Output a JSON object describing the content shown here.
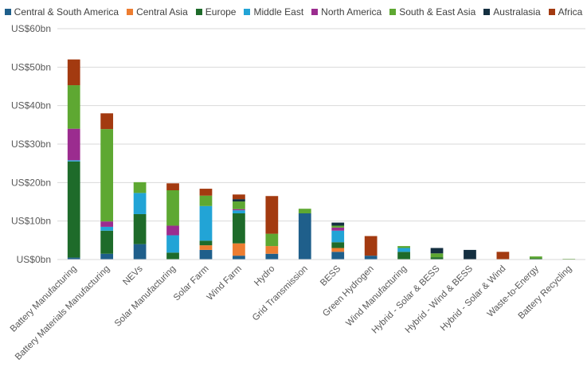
{
  "chart_data": {
    "type": "bar",
    "stacked": true,
    "title": "",
    "xlabel": "",
    "ylabel": "",
    "ylim": [
      0,
      60
    ],
    "y_ticks": [
      "US$0bn",
      "US$10bn",
      "US$20bn",
      "US$30bn",
      "US$40bn",
      "US$50bn",
      "US$60bn"
    ],
    "grid": true,
    "legend_position": "top",
    "categories": [
      "Battery Manufacturing",
      "Battery Materials Manufacturing",
      "NEVs",
      "Solar Manufacturing",
      "Solar Farm",
      "Wind Farm",
      "Hydro",
      "Grid Transmission",
      "BESS",
      "Green Hydrogen",
      "Wind Manufacturing",
      "Hybrid - Solar & BESS",
      "Hybrid - Wind & BESS",
      "Hybrid - Solar & Wind",
      "Waste-to-Energy",
      "Battery Recycling"
    ],
    "series": [
      {
        "name": "Central & South America",
        "color": "#1f5f8b",
        "values": [
          0.5,
          1.5,
          4.0,
          0.0,
          2.5,
          1.0,
          1.5,
          12.0,
          2.0,
          1.0,
          0.0,
          0.0,
          0.0,
          0.0,
          0.0,
          0.0
        ]
      },
      {
        "name": "Central Asia",
        "color": "#ed7d31",
        "values": [
          0.0,
          0.0,
          0.0,
          0.0,
          1.2,
          3.2,
          2.0,
          0.0,
          1.0,
          0.0,
          0.0,
          0.0,
          0.0,
          0.0,
          0.0,
          0.0
        ]
      },
      {
        "name": "Europe",
        "color": "#1e6b2a",
        "values": [
          25.0,
          6.0,
          7.8,
          1.8,
          1.2,
          7.8,
          0.0,
          0.0,
          1.5,
          0.0,
          2.0,
          0.6,
          0.0,
          0.0,
          0.3,
          0.0
        ]
      },
      {
        "name": "Middle East",
        "color": "#22a4d6",
        "values": [
          0.3,
          1.0,
          5.5,
          4.5,
          9.0,
          0.8,
          0.0,
          0.0,
          3.0,
          0.0,
          1.0,
          0.0,
          0.0,
          0.0,
          0.0,
          0.0
        ]
      },
      {
        "name": "North America",
        "color": "#9b2c8f",
        "values": [
          8.2,
          1.4,
          0.0,
          2.5,
          0.0,
          0.3,
          0.0,
          0.0,
          0.8,
          0.0,
          0.0,
          0.0,
          0.0,
          0.0,
          0.0,
          0.0
        ]
      },
      {
        "name": "South & East Asia",
        "color": "#5ea832",
        "values": [
          11.3,
          24.0,
          2.8,
          9.2,
          2.7,
          2.0,
          3.2,
          1.2,
          0.5,
          0.0,
          0.5,
          1.0,
          0.0,
          0.0,
          0.5,
          0.2
        ]
      },
      {
        "name": "Australasia",
        "color": "#142f40",
        "values": [
          0.0,
          0.0,
          0.0,
          0.0,
          0.0,
          0.6,
          0.0,
          0.0,
          0.8,
          0.0,
          0.0,
          1.4,
          2.5,
          0.0,
          0.0,
          0.0
        ]
      },
      {
        "name": "Africa",
        "color": "#a33a10",
        "values": [
          6.7,
          4.1,
          0.0,
          1.8,
          1.8,
          1.2,
          9.8,
          0.0,
          0.0,
          5.1,
          0.0,
          0.0,
          0.0,
          2.0,
          0.0,
          0.0
        ]
      }
    ]
  }
}
